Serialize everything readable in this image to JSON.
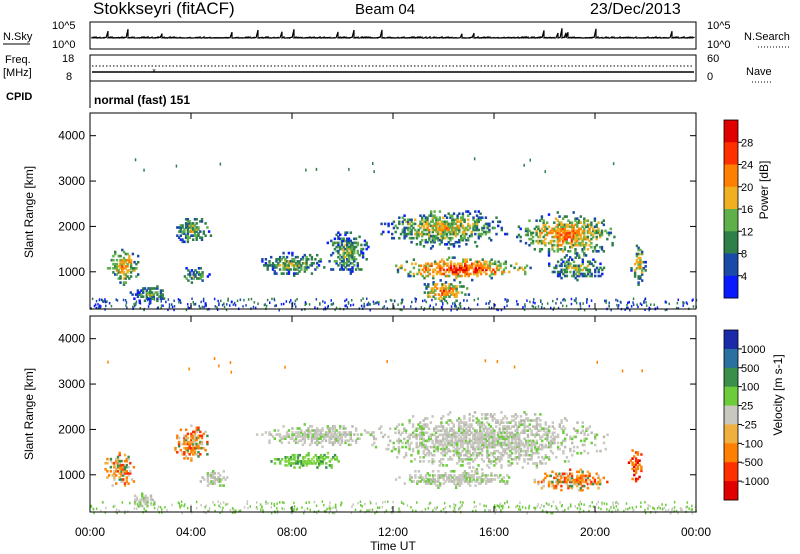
{
  "header": {
    "title": "Stokkseyri (fitACF)",
    "beam": "Beam 04",
    "date": "23/Dec/2013"
  },
  "sky_panel": {
    "left_label": "N.Sky",
    "right_label": "N.Search",
    "ticks": [
      "10^5",
      "10^0"
    ]
  },
  "freq_panel": {
    "label_top": "Freq.",
    "label_unit": "[MHz]",
    "left_ticks": [
      "18",
      "8"
    ],
    "right_ticks": [
      "60",
      "0"
    ],
    "right_label": "Nave"
  },
  "cpid": {
    "label": "CPID",
    "value": "normal (fast) 151"
  },
  "x_axis": {
    "ticks": [
      "00:00",
      "04:00",
      "08:00",
      "12:00",
      "16:00",
      "20:00",
      "00:00"
    ],
    "label": "Time UT"
  },
  "chart_data": [
    {
      "type": "heatmap",
      "panel": "power",
      "ylabel": "Slant Range [km]",
      "yticks": [
        "1000",
        "2000",
        "3000",
        "4000"
      ],
      "ylim": [
        180,
        4500
      ],
      "xlim": [
        0,
        24
      ],
      "colorbar": {
        "label": "Power [dB]",
        "ticks": [
          "4",
          "8",
          "12",
          "16",
          "20",
          "24",
          "28"
        ],
        "colors": [
          "#0a1aff",
          "#1a4aa8",
          "#2e7f4a",
          "#5fb04a",
          "#f0b020",
          "#ff8000",
          "#ff3000",
          "#e00000"
        ]
      },
      "regions": [
        {
          "t0": 0.6,
          "t1": 2.0,
          "r0": 700,
          "r1": 1500,
          "level": 0.7
        },
        {
          "t0": 1.5,
          "t1": 3.2,
          "r0": 300,
          "r1": 700,
          "level": 0.4
        },
        {
          "t0": 3.2,
          "t1": 4.8,
          "r0": 1600,
          "r1": 2200,
          "level": 0.5
        },
        {
          "t0": 3.5,
          "t1": 4.7,
          "r0": 700,
          "r1": 1100,
          "level": 0.4
        },
        {
          "t0": 6.5,
          "t1": 9.5,
          "r0": 900,
          "r1": 1400,
          "level": 0.5
        },
        {
          "t0": 9.3,
          "t1": 11.0,
          "r0": 900,
          "r1": 1900,
          "level": 0.45
        },
        {
          "t0": 11.5,
          "t1": 16.5,
          "r0": 1500,
          "r1": 2400,
          "level": 0.6
        },
        {
          "t0": 11.8,
          "t1": 17.5,
          "r0": 800,
          "r1": 1300,
          "level": 0.95
        },
        {
          "t0": 13.0,
          "t1": 15.0,
          "r0": 300,
          "r1": 800,
          "level": 0.8
        },
        {
          "t0": 16.8,
          "t1": 20.8,
          "r0": 1300,
          "r1": 2300,
          "level": 0.75
        },
        {
          "t0": 18.0,
          "t1": 20.5,
          "r0": 800,
          "r1": 1300,
          "level": 0.5
        },
        {
          "t0": 21.4,
          "t1": 22.0,
          "r0": 700,
          "r1": 1600,
          "level": 0.6
        }
      ]
    },
    {
      "type": "heatmap",
      "panel": "velocity",
      "ylabel": "Slant Range [km]",
      "yticks": [
        "1000",
        "2000",
        "3000",
        "4000"
      ],
      "ylim": [
        180,
        4500
      ],
      "xlim": [
        0,
        24
      ],
      "colorbar": {
        "label": "Velocity [m s-1]",
        "ticks": [
          "1000",
          "500",
          "100",
          "25",
          "-25",
          "-100",
          "-500",
          "-1000"
        ],
        "colors": [
          "#1a2aa8",
          "#2a70a0",
          "#3a8f4a",
          "#6ccc3a",
          "#c8c8c0",
          "#f0b040",
          "#ff8000",
          "#ff3000",
          "#e00000"
        ]
      },
      "regions": [
        {
          "t0": 0.5,
          "t1": 1.8,
          "r0": 700,
          "r1": 1500,
          "class": "orange"
        },
        {
          "t0": 1.6,
          "t1": 2.6,
          "r0": 250,
          "r1": 600,
          "class": "gray"
        },
        {
          "t0": 3.2,
          "t1": 4.8,
          "r0": 1300,
          "r1": 2100,
          "class": "orange"
        },
        {
          "t0": 4.2,
          "t1": 5.6,
          "r0": 700,
          "r1": 1100,
          "class": "gray"
        },
        {
          "t0": 7.0,
          "t1": 10.0,
          "r0": 1100,
          "r1": 1500,
          "class": "green"
        },
        {
          "t0": 6.5,
          "t1": 11.5,
          "r0": 1600,
          "r1": 2100,
          "class": "gray"
        },
        {
          "t0": 11.0,
          "t1": 20.5,
          "r0": 1100,
          "r1": 2400,
          "class": "gray"
        },
        {
          "t0": 12.0,
          "t1": 17.0,
          "r0": 700,
          "r1": 1100,
          "class": "gray"
        },
        {
          "t0": 17.5,
          "t1": 20.5,
          "r0": 600,
          "r1": 1100,
          "class": "orange"
        },
        {
          "t0": 21.3,
          "t1": 21.9,
          "r0": 800,
          "r1": 1600,
          "class": "red"
        }
      ]
    }
  ]
}
